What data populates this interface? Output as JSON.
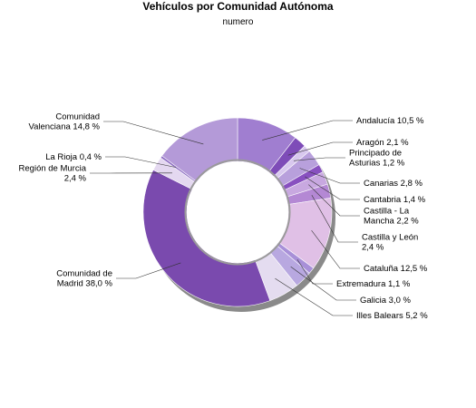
{
  "chart_data": {
    "type": "pie",
    "title": "Vehículos por Comunidad Autónoma",
    "subtitle": "numero",
    "slices": [
      {
        "name": "Andalucía",
        "value": 10.5,
        "label": [
          "Andalucía 10,5 %"
        ],
        "color": "#a07ed0"
      },
      {
        "name": "Aragón",
        "value": 2.1,
        "label": [
          "Aragón 2,1 %"
        ],
        "color": "#7e4cb8"
      },
      {
        "name": "Principado de Asturias",
        "value": 1.2,
        "label": [
          "Principado de",
          "Asturias 1,2 %"
        ],
        "color": "#d8c8ee"
      },
      {
        "name": "Canarias",
        "value": 2.8,
        "label": [
          "Canarias 2,8 %"
        ],
        "color": "#b8a0dc"
      },
      {
        "name": "Cantabria",
        "value": 1.4,
        "label": [
          "Cantabria 1,4 %"
        ],
        "color": "#8850c0"
      },
      {
        "name": "Castilla - La Mancha",
        "value": 2.2,
        "label": [
          "Castilla - La",
          "Mancha 2,2 %"
        ],
        "color": "#c8a8e0"
      },
      {
        "name": "Castilla y León",
        "value": 2.4,
        "label": [
          "Castilla y León",
          "2,4 %"
        ],
        "color": "#b488d4"
      },
      {
        "name": "Cataluña",
        "value": 12.5,
        "label": [
          "Cataluña 12,5 %"
        ],
        "color": "#e0c0e6"
      },
      {
        "name": "Extremadura",
        "value": 1.1,
        "label": [
          "Extremadura 1,1 %"
        ],
        "color": "#a890d8"
      },
      {
        "name": "Galicia",
        "value": 3.0,
        "label": [
          "Galicia 3,0 %"
        ],
        "color": "#b8a8e0"
      },
      {
        "name": "Illes Balears",
        "value": 5.2,
        "label": [
          "Illes Balears 5,2 %"
        ],
        "color": "#e4dcf0"
      },
      {
        "name": "Comunidad de Madrid",
        "value": 38.0,
        "label": [
          "Comunidad de",
          "Madrid 38,0 %"
        ],
        "color": "#7a4aae"
      },
      {
        "name": "Región de Murcia",
        "value": 2.4,
        "label": [
          "Región de Murcia",
          "2,4 %"
        ],
        "color": "#e4d8f0"
      },
      {
        "name": "La Rioja",
        "value": 0.4,
        "label": [
          "La Rioja 0,4 %"
        ],
        "color": "#9070c4"
      },
      {
        "name": "Comunidad Valenciana",
        "value": 14.8,
        "label": [
          "Comunidad",
          "Valenciana 14,8 %"
        ],
        "color": "#b49ad8"
      }
    ]
  }
}
